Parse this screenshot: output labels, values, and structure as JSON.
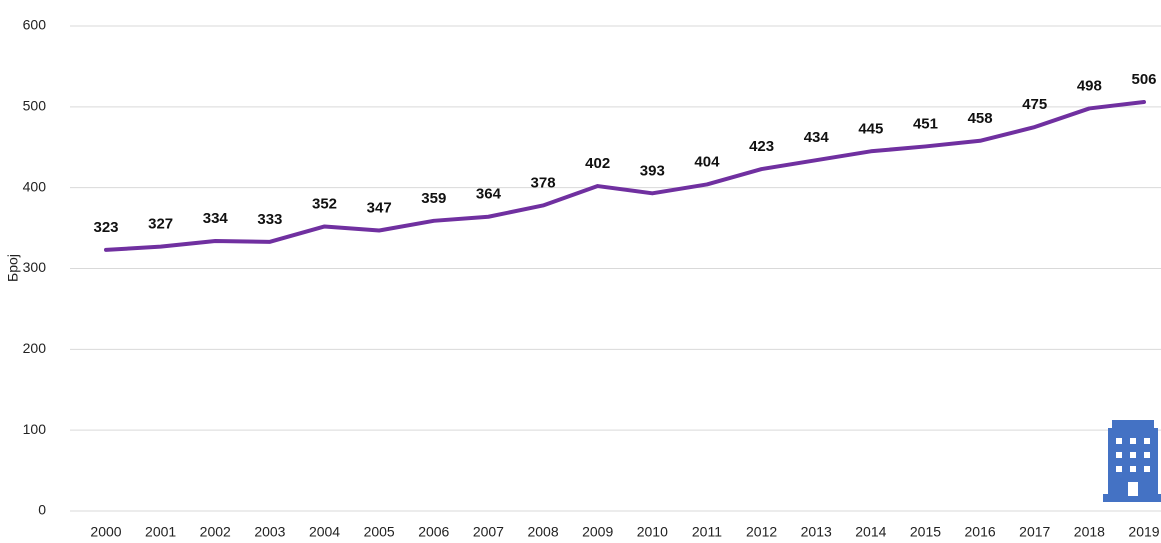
{
  "chart_data": {
    "type": "line",
    "y_label": "Број",
    "categories": [
      "2000",
      "2001",
      "2002",
      "2003",
      "2004",
      "2005",
      "2006",
      "2007",
      "2008",
      "2009",
      "2010",
      "2011",
      "2012",
      "2013",
      "2014",
      "2015",
      "2016",
      "2017",
      "2018",
      "2019"
    ],
    "series": [
      {
        "name": null,
        "color": "#7030a0",
        "values": [
          323,
          327,
          334,
          333,
          352,
          347,
          359,
          364,
          378,
          402,
          393,
          404,
          423,
          434,
          445,
          451,
          458,
          475,
          498,
          506
        ]
      }
    ],
    "ylim": [
      0,
      600
    ],
    "yticks": [
      0,
      100,
      200,
      300,
      400,
      500,
      600
    ],
    "grid": true,
    "data_labels": true
  }
}
